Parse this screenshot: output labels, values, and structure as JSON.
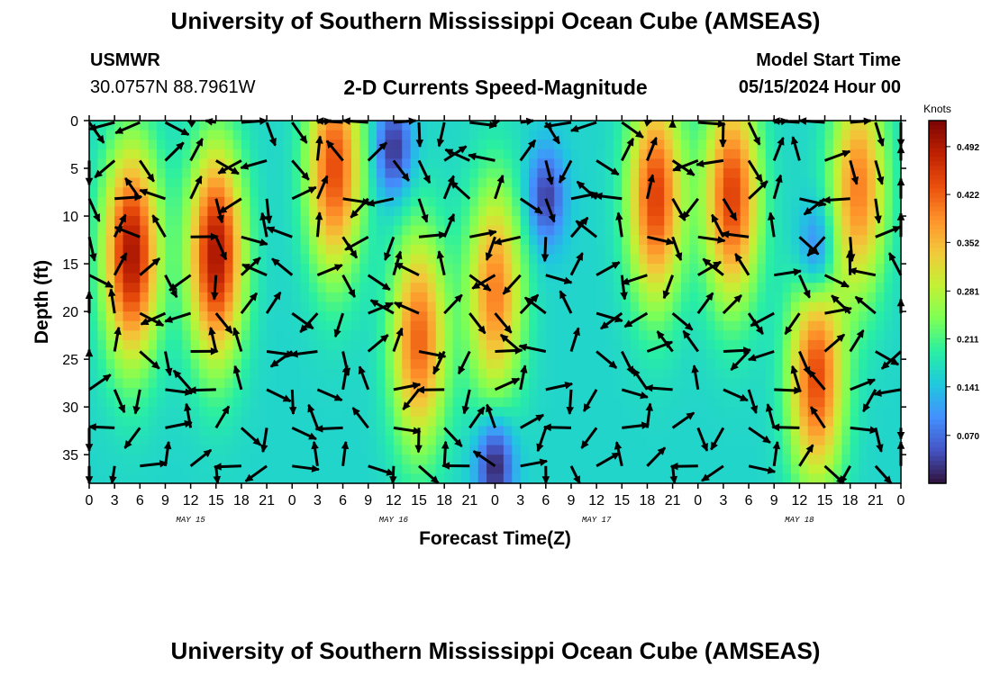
{
  "header": {
    "title": "University of Southern Mississippi Ocean Cube (AMSEAS)",
    "station": "USMWR",
    "coords": "30.0757N  88.7961W",
    "subtitle": "2-D Currents Speed-Magnitude",
    "model_start_label": "Model Start Time",
    "model_start_value": "05/15/2024 Hour 00"
  },
  "footer": {
    "title": "University of Southern Mississippi Ocean Cube (AMSEAS)"
  },
  "chart_data": {
    "type": "heatmap",
    "title": "2-D Currents Speed-Magnitude",
    "xlabel": "Forecast Time(Z)",
    "ylabel": "Depth (ft)",
    "x_ticks": [
      "0",
      "3",
      "6",
      "9",
      "12",
      "15",
      "18",
      "21",
      "0",
      "3",
      "6",
      "9",
      "12",
      "15",
      "18",
      "21",
      "0",
      "3",
      "6",
      "9",
      "12",
      "15",
      "18",
      "21",
      "0",
      "3",
      "6",
      "9",
      "12",
      "15",
      "18",
      "21",
      "0"
    ],
    "day_labels": [
      "MAY 15",
      "MAY 16",
      "MAY 17",
      "MAY 18"
    ],
    "xlim_hours": [
      0,
      96
    ],
    "y_ticks": [
      0,
      5,
      10,
      15,
      20,
      25,
      30,
      35
    ],
    "ylim": [
      0,
      38
    ],
    "y_inverted": true,
    "colorbar": {
      "unit": "Knots",
      "ticks": [
        "0.492",
        "0.422",
        "0.352",
        "0.281",
        "0.211",
        "0.141",
        "0.070"
      ],
      "range": [
        0,
        0.53
      ],
      "colors": [
        "#30123b",
        "#4454c4",
        "#4490fe",
        "#1fc8de",
        "#29efa2",
        "#7eff55",
        "#c3f134",
        "#f2c93a",
        "#fe922a",
        "#ea4f0d",
        "#be2102",
        "#7a0403"
      ]
    },
    "speed_hotspots": [
      {
        "hour": 5,
        "depth": 14,
        "speed": 0.5
      },
      {
        "hour": 15,
        "depth": 14,
        "speed": 0.5
      },
      {
        "hour": 29,
        "depth": 5,
        "speed": 0.44
      },
      {
        "hour": 39,
        "depth": 23,
        "speed": 0.42
      },
      {
        "hour": 48,
        "depth": 18,
        "speed": 0.4
      },
      {
        "hour": 67,
        "depth": 8,
        "speed": 0.45
      },
      {
        "hour": 76,
        "depth": 8,
        "speed": 0.45
      },
      {
        "hour": 86,
        "depth": 27,
        "speed": 0.44
      },
      {
        "hour": 91,
        "depth": 7,
        "speed": 0.4
      }
    ],
    "speed_lows": [
      {
        "hour": 36,
        "depth": 3,
        "speed": 0.02
      },
      {
        "hour": 48,
        "depth": 36,
        "speed": 0.0
      },
      {
        "hour": 54,
        "depth": 8,
        "speed": 0.03
      },
      {
        "hour": 86,
        "depth": 14,
        "speed": 0.03
      }
    ],
    "arrow_hours": [
      0,
      3,
      6,
      9,
      12,
      15,
      18,
      21,
      24,
      27,
      30,
      33,
      36,
      39,
      42,
      45,
      48,
      51,
      54,
      57,
      60,
      63,
      66,
      69,
      72,
      75,
      78,
      81,
      84,
      87,
      90,
      93,
      96
    ],
    "arrow_depths": [
      0,
      4,
      8,
      12,
      16,
      20,
      24,
      28,
      32,
      36
    ]
  }
}
